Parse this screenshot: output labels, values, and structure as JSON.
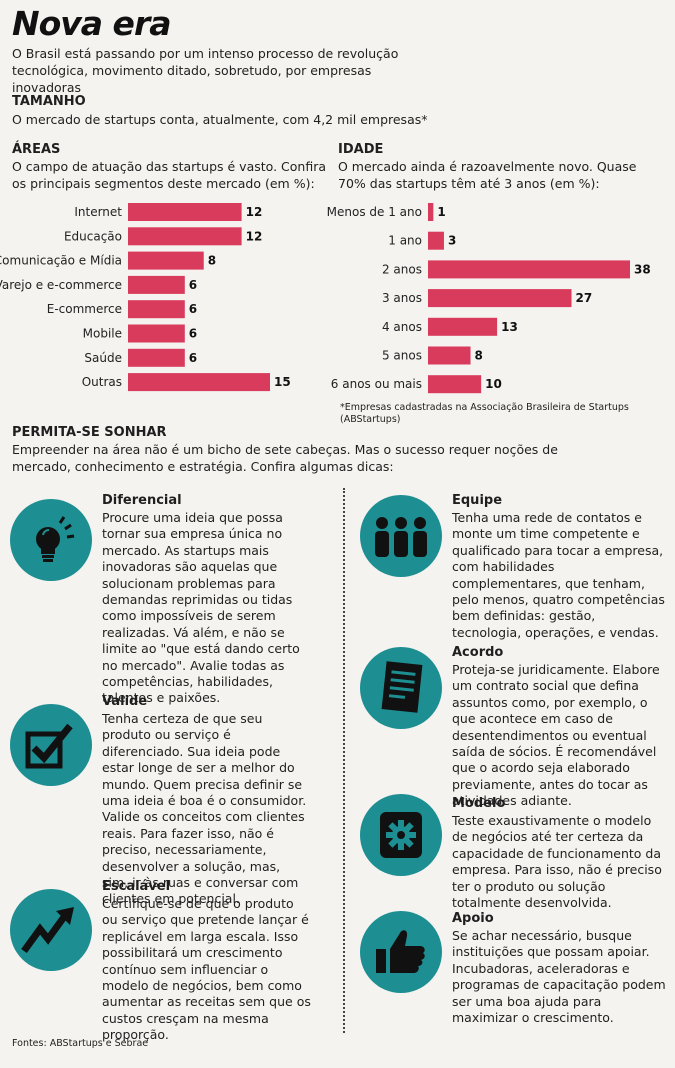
{
  "header": {
    "title": "Nova era",
    "subtitle": "O Brasil está passando por um intenso processo de revolução tecnológica, movimento ditado, sobretudo, por empresas inovadoras"
  },
  "tamanho": {
    "heading": "TAMANHO",
    "text": "O mercado de startups conta, atualmente, com 4,2 mil empresas*"
  },
  "areas": {
    "heading": "ÁREAS",
    "text": "O campo de atuação das startups é vasto. Confira os principais segmentos deste mercado (em %):"
  },
  "idade": {
    "heading": "IDADE",
    "text": "O mercado ainda é razoavelmente novo. Quase 70% das startups têm até 3 anos (em %):",
    "note": "*Empresas cadastradas na Associação Brasileira de Startups (ABStartups)"
  },
  "chart_data": [
    {
      "type": "bar",
      "orientation": "horizontal",
      "categories": [
        "Internet",
        "Educação",
        "Comunicação e Mídia",
        "Varejo e e-commerce",
        "E-commerce",
        "Mobile",
        "Saúde",
        "Outras"
      ],
      "values": [
        12,
        12,
        8,
        6,
        6,
        6,
        6,
        15
      ],
      "data_labels": [
        "12",
        "12",
        "8",
        "6",
        "6",
        "6",
        "6",
        "15"
      ],
      "color": "#d93b5c",
      "xlim": [
        0,
        15
      ],
      "grid": false
    },
    {
      "type": "bar",
      "orientation": "horizontal",
      "categories": [
        "Menos de 1 ano",
        "1 ano",
        "2 anos",
        "3 anos",
        "4 anos",
        "5 anos",
        "6 anos ou mais"
      ],
      "values": [
        1,
        3,
        38,
        27,
        13,
        8,
        10
      ],
      "data_labels": [
        "1",
        "3",
        "38",
        "27",
        "13",
        "8",
        "10"
      ],
      "color": "#d93b5c",
      "xlim": [
        0,
        38
      ],
      "grid": false
    }
  ],
  "sonhar": {
    "heading": "PERMITA-SE SONHAR",
    "text": "Empreender na área não é um bicho de sete cabeças. Mas o sucesso requer noções de mercado, conhecimento e estratégia. Confira algumas dicas:"
  },
  "tips": {
    "diferencial": {
      "title": "Diferencial",
      "text": "Procure uma ideia que possa tornar sua empresa única no mercado. As startups mais inovadoras são aquelas que solucionam problemas para demandas reprimidas ou tidas como impossíveis de serem realizadas. Vá além, e não se limite ao \"que está dando certo no mercado\". Avalie todas as competências, habilidades, talentos e paixões.",
      "icon": "lightbulb-icon"
    },
    "valide": {
      "title": "Valide",
      "text": "Tenha certeza de que seu produto ou serviço é diferenciado. Sua ideia pode estar longe de ser a melhor do mundo. Quem precisa definir se uma ideia é boa é o consumidor. Valide os conceitos com clientes reais. Para fazer isso, não é preciso, necessariamente, desenvolver a solução, mas, sim, ir às ruas e conversar com clientes em potencial.",
      "icon": "checkbox-icon"
    },
    "escalavel": {
      "title": "Escalável",
      "text": "Certifique-se de que o produto ou serviço que pretende lançar é replicável em larga escala. Isso possibilitará um crescimento contínuo sem influenciar o modelo de negócios, bem como aumentar as receitas sem que os custos cresçam na mesma proporção.",
      "icon": "trend-arrow-icon"
    },
    "equipe": {
      "title": "Equipe",
      "text": "Tenha uma rede de contatos e monte um time competente e qualificado para tocar a empresa, com habilidades complementares, que tenham, pelo menos, quatro competências bem definidas: gestão, tecnologia, operações, e vendas.",
      "icon": "team-icon"
    },
    "acordo": {
      "title": "Acordo",
      "text": "Proteja-se juridicamente. Elabore um contrato social que defina assuntos como, por exemplo, o que acontece em caso de desentendimentos ou eventual saída de sócios. É recomendável que o acordo seja elaborado previamente, antes do tocar as atividades adiante.",
      "icon": "document-icon"
    },
    "modelo": {
      "title": "Modelo",
      "text": "Teste exaustivamente o modelo de negócios até ter certeza da capacidade de funcionamento da empresa. Para isso, não é preciso ter o produto ou solução totalmente desenvolvida.",
      "icon": "gear-icon"
    },
    "apoio": {
      "title": "Apoio",
      "text": "Se achar necessário, busque instituições que possam apoiar. Incubadoras, aceleradoras e programas de capacitação podem ser uma boa ajuda para maximizar o crescimento.",
      "icon": "thumbs-up-icon"
    }
  },
  "footer": {
    "sources": "Fontes: ABStartups e Sebrae"
  }
}
